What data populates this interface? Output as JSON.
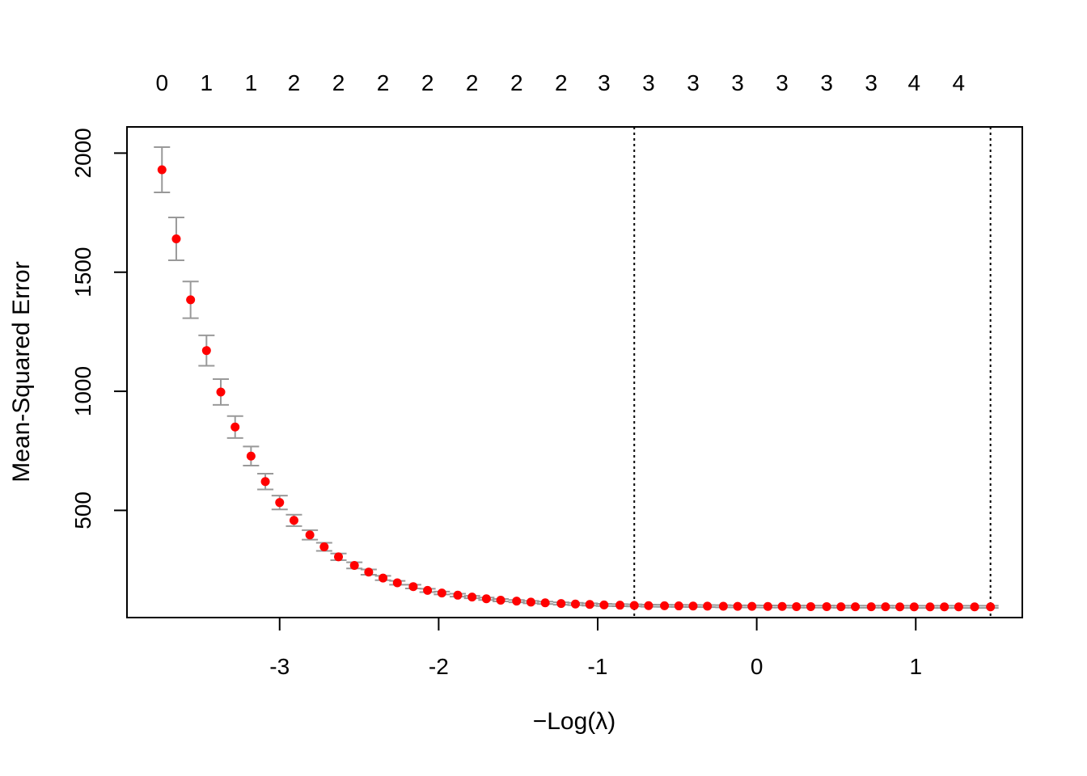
{
  "chart_data": {
    "type": "scatter",
    "title": "",
    "xlabel": "−Log(λ)",
    "ylabel": "Mean-Squared Error",
    "xlim": [
      -3.96,
      1.67
    ],
    "ylim": [
      50,
      2110
    ],
    "grid": false,
    "legend": "none",
    "x_ticks": [
      -3,
      -2,
      -1,
      0,
      1
    ],
    "x_tick_labels": [
      "-3",
      "-2",
      "-1",
      "0",
      "1"
    ],
    "y_ticks": [
      500,
      1000,
      1500,
      2000
    ],
    "y_tick_labels": [
      "500",
      "1000",
      "1500",
      "2000"
    ],
    "top_axis": {
      "x": [
        -3.74,
        -3.46,
        -3.18,
        -2.91,
        -2.63,
        -2.35,
        -2.07,
        -1.79,
        -1.51,
        -1.23,
        -0.96,
        -0.68,
        -0.4,
        -0.12,
        0.16,
        0.44,
        0.72,
        0.99,
        1.27
      ],
      "labels": [
        "0",
        "1",
        "1",
        "2",
        "2",
        "2",
        "2",
        "2",
        "2",
        "2",
        "3",
        "3",
        "3",
        "3",
        "3",
        "3",
        "3",
        "4",
        "4"
      ]
    },
    "vlines": [
      -0.77,
      1.47
    ],
    "point_color": "#ff0000",
    "errorbar_color": "#999999",
    "series": [
      {
        "x": [
          -3.74,
          -3.65,
          -3.56,
          -3.46,
          -3.37,
          -3.28,
          -3.18,
          -3.09,
          -3.0,
          -2.91,
          -2.81,
          -2.72,
          -2.63,
          -2.53,
          -2.44,
          -2.35,
          -2.26,
          -2.16,
          -2.07,
          -1.98,
          -1.88,
          -1.79,
          -1.7,
          -1.61,
          -1.51,
          -1.42,
          -1.33,
          -1.23,
          -1.14,
          -1.05,
          -0.96,
          -0.86,
          -0.77,
          -0.68,
          -0.58,
          -0.49,
          -0.4,
          -0.31,
          -0.21,
          -0.12,
          -0.03,
          0.07,
          0.16,
          0.25,
          0.34,
          0.44,
          0.53,
          0.62,
          0.72,
          0.81,
          0.9,
          0.99,
          1.09,
          1.18,
          1.27,
          1.37,
          1.47
        ],
        "y": [
          1930,
          1640,
          1384,
          1171,
          997,
          850,
          728,
          621,
          533,
          458,
          397,
          347,
          305,
          269,
          241,
          216,
          196,
          180,
          164,
          153,
          144,
          136,
          129,
          123,
          119,
          115,
          112,
          109,
          107,
          105,
          103,
          102,
          101,
          100,
          99.5,
          99,
          98.5,
          98,
          97.5,
          97,
          97,
          96.5,
          96.5,
          96,
          96,
          96,
          95.5,
          95.5,
          95.5,
          95.5,
          95,
          95,
          95,
          95,
          95,
          95,
          95
        ],
        "lower": [
          1835,
          1550,
          1307,
          1107,
          943,
          804,
          688,
          588,
          504,
          434,
          377,
          330,
          291,
          256,
          230,
          207,
          188,
          172,
          157,
          147,
          138,
          131,
          124,
          118,
          114,
          110,
          107,
          104,
          102,
          100,
          98.5,
          97.5,
          96.5,
          95.5,
          95,
          94.5,
          94,
          93.5,
          93,
          92.5,
          92.5,
          92,
          92,
          91.5,
          91.5,
          91.5,
          91,
          91,
          91,
          91,
          90.5,
          90.5,
          90.5,
          90.5,
          90.5,
          90.5,
          90.5
        ],
        "upper": [
          2025,
          1730,
          1461,
          1235,
          1051,
          896,
          768,
          654,
          562,
          482,
          417,
          364,
          319,
          282,
          252,
          225,
          204,
          188,
          171,
          159,
          150,
          141,
          134,
          128,
          124,
          120,
          117,
          114,
          112,
          110,
          107.5,
          106.5,
          105.5,
          104.5,
          104,
          103.5,
          103,
          102.5,
          102,
          101.5,
          101.5,
          101,
          101,
          100.5,
          100.5,
          100.5,
          100,
          100,
          100,
          100,
          99.5,
          99.5,
          99.5,
          99.5,
          99.5,
          99.5,
          99.5
        ]
      }
    ]
  }
}
